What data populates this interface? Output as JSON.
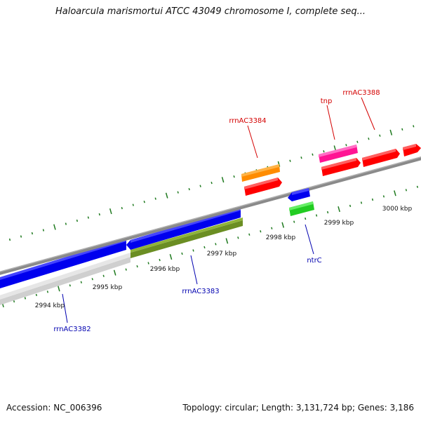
{
  "title": "Haloarcula marismortui ATCC 43049 chromosome I, complete seq...",
  "footer": {
    "accession": "Accession: NC_006396",
    "topology": "Topology: circular; Length: 3,131,724 bp; Genes: 3,186"
  },
  "colors": {
    "backbone": "#8a8a8a",
    "tick": "#1f7a1f",
    "label_red": "#d40000",
    "label_blue": "#0000b0"
  },
  "ruler": {
    "ticks": [
      "2994 kbp",
      "2995 kbp",
      "2996 kbp",
      "2997 kbp",
      "2998 kbp",
      "2999 kbp",
      "3000 kbp"
    ]
  },
  "genes": [
    {
      "name": "rrnAC3382",
      "color": "#0000b0"
    },
    {
      "name": "rrnAC3383",
      "color": "#0000b0"
    },
    {
      "name": "ntrC",
      "color": "#0000b0"
    },
    {
      "name": "rrnAC3384",
      "color": "#d40000"
    },
    {
      "name": "tnp",
      "color": "#d40000"
    },
    {
      "name": "rrnAC3388",
      "color": "#d40000"
    }
  ],
  "features": [
    {
      "name": "orange-feature",
      "color": "#ff8c00"
    },
    {
      "name": "red-feature",
      "color": "#ff0000"
    },
    {
      "name": "pink-feature",
      "color": "#ff1493"
    },
    {
      "name": "blue-feature",
      "color": "#0000ee"
    },
    {
      "name": "green-feature",
      "color": "#22cc22"
    },
    {
      "name": "olive-feature",
      "color": "#6b8e23"
    },
    {
      "name": "grey-feature",
      "color": "#c8c8c8"
    }
  ]
}
